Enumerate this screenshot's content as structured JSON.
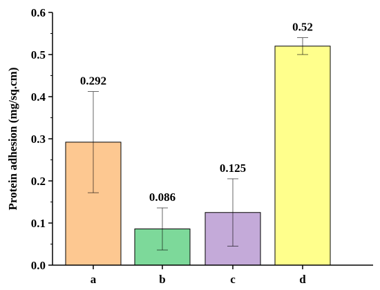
{
  "chart_data": {
    "type": "bar",
    "title": "",
    "xlabel": "",
    "ylabel": "Protein adhesion (mg/sq.cm)",
    "ylim": [
      0.0,
      0.6
    ],
    "yticks": [
      "0.0",
      "0.1",
      "0.2",
      "0.3",
      "0.4",
      "0.5",
      "0.6"
    ],
    "grid": false,
    "categories": [
      "a",
      "b",
      "c",
      "d"
    ],
    "values": [
      0.292,
      0.086,
      0.125,
      0.52
    ],
    "value_labels": [
      "0.292",
      "0.086",
      "0.125",
      "0.52"
    ],
    "errors": [
      0.12,
      0.05,
      0.08,
      0.02
    ],
    "colors": [
      "#FDC891",
      "#7DD99A",
      "#C4AAD9",
      "#FFFF8C"
    ]
  }
}
